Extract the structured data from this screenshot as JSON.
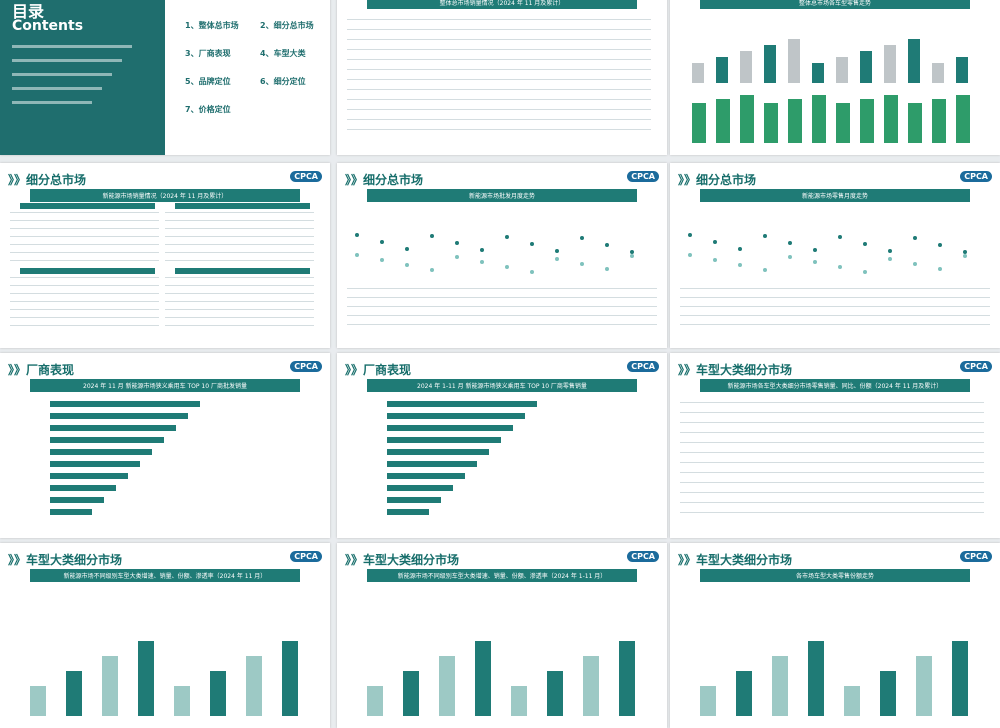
{
  "contents": {
    "title": "目录",
    "subtitle": "Contents",
    "items": [
      "1、整体总市场",
      "2、细分总市场",
      "3、厂商表现",
      "4、车型大类",
      "5、品牌定位",
      "6、细分定位",
      "7、价格定位"
    ]
  },
  "slides": [
    {
      "title": "",
      "subtitle": "整体总市场销量情况（2024 年 11 月及累计）"
    },
    {
      "title": "",
      "subtitle": "整体总市场各车型零售走势"
    },
    {
      "title": "细分总市场",
      "subtitle": "新能源市场销量情况（2024 年 11 月及累计）"
    },
    {
      "title": "细分总市场",
      "subtitle": "新能源市场批发月度走势"
    },
    {
      "title": "细分总市场",
      "subtitle": "新能源市场零售月度走势"
    },
    {
      "title": "厂商表现",
      "subtitle": "2024 年 11 月 新能源市场狭义乘用车 TOP 10 厂商批发销量"
    },
    {
      "title": "厂商表现",
      "subtitle": "2024 年 1-11 月 新能源市场狭义乘用车 TOP 10 厂商零售销量"
    },
    {
      "title": "车型大类细分市场",
      "subtitle": "新能源市场各车型大类细分市场零售销量、同比、份额（2024 年 11 月及累计）"
    },
    {
      "title": "车型大类细分市场",
      "subtitle": "新能源市场不同级别车型大类增速、销量、份额、渗透率（2024 年 11 月）"
    },
    {
      "title": "车型大类细分市场",
      "subtitle": "新能源市场不同级别车型大类增速、销量、份额、渗透率（2024 年 1-11 月）"
    },
    {
      "title": "车型大类细分市场",
      "subtitle": "各市场车型大类零售份额走势"
    }
  ],
  "logo": "CPCA",
  "prefix": "》》"
}
